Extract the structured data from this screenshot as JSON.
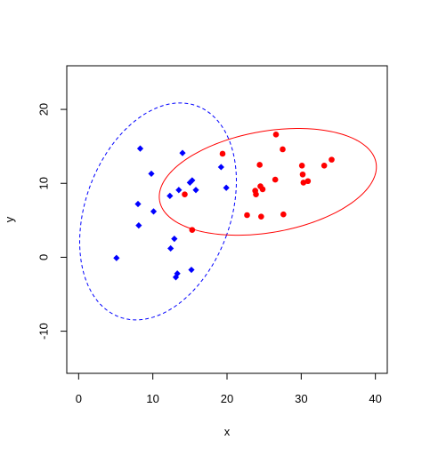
{
  "chart_data": {
    "type": "scatter",
    "title": "",
    "xlabel": "x",
    "ylabel": "y",
    "xlim": [
      -1.6,
      41.6
    ],
    "ylim": [
      -15.7,
      25.9
    ],
    "x_ticks": [
      0,
      10,
      20,
      30,
      40
    ],
    "x_tick_labels": [
      "0",
      "10",
      "20",
      "30",
      "40"
    ],
    "y_ticks": [
      -10,
      0,
      10,
      20
    ],
    "y_tick_labels": [
      "-10",
      "0",
      "10",
      "20"
    ],
    "grid": false,
    "legend": "none",
    "series": [
      {
        "marker": "diamond",
        "color": "#0000ff",
        "points": [
          {
            "x": 5.1,
            "y": -0.1
          },
          {
            "x": 8.0,
            "y": 7.2
          },
          {
            "x": 8.1,
            "y": 4.3
          },
          {
            "x": 8.3,
            "y": 14.7
          },
          {
            "x": 9.8,
            "y": 11.3
          },
          {
            "x": 10.1,
            "y": 6.2
          },
          {
            "x": 12.3,
            "y": 8.3
          },
          {
            "x": 12.4,
            "y": 1.2
          },
          {
            "x": 12.9,
            "y": 2.5
          },
          {
            "x": 13.1,
            "y": -2.7
          },
          {
            "x": 13.3,
            "y": -2.2
          },
          {
            "x": 13.5,
            "y": 9.1
          },
          {
            "x": 14.0,
            "y": 14.1
          },
          {
            "x": 15.0,
            "y": 10.1
          },
          {
            "x": 15.2,
            "y": -1.7
          },
          {
            "x": 15.3,
            "y": 10.4
          },
          {
            "x": 15.8,
            "y": 9.1
          },
          {
            "x": 19.2,
            "y": 12.2
          },
          {
            "x": 19.9,
            "y": 9.4
          }
        ],
        "ellipse": {
          "center": [
            10.7,
            6.2
          ],
          "semi_axes": [
            9.78,
            15.2
          ],
          "rotation_deg": -20,
          "line": "dashed"
        }
      },
      {
        "marker": "circle",
        "color": "#ff0000",
        "points": [
          {
            "x": 14.3,
            "y": 8.5
          },
          {
            "x": 15.3,
            "y": 3.7
          },
          {
            "x": 19.4,
            "y": 14.0
          },
          {
            "x": 22.7,
            "y": 5.7
          },
          {
            "x": 23.8,
            "y": 9.0
          },
          {
            "x": 23.9,
            "y": 8.5
          },
          {
            "x": 24.4,
            "y": 12.5
          },
          {
            "x": 24.5,
            "y": 9.6
          },
          {
            "x": 24.6,
            "y": 5.5
          },
          {
            "x": 24.8,
            "y": 9.2
          },
          {
            "x": 26.5,
            "y": 10.5
          },
          {
            "x": 26.6,
            "y": 16.6
          },
          {
            "x": 27.5,
            "y": 14.6
          },
          {
            "x": 27.6,
            "y": 5.8
          },
          {
            "x": 30.1,
            "y": 12.4
          },
          {
            "x": 30.2,
            "y": 11.2
          },
          {
            "x": 30.3,
            "y": 10.1
          },
          {
            "x": 30.9,
            "y": 10.3
          },
          {
            "x": 33.1,
            "y": 12.4
          },
          {
            "x": 34.1,
            "y": 13.2
          }
        ],
        "ellipse": {
          "center": [
            25.5,
            10.2
          ],
          "semi_axes": [
            14.81,
            6.85
          ],
          "rotation_deg": 10,
          "line": "solid"
        }
      }
    ]
  }
}
